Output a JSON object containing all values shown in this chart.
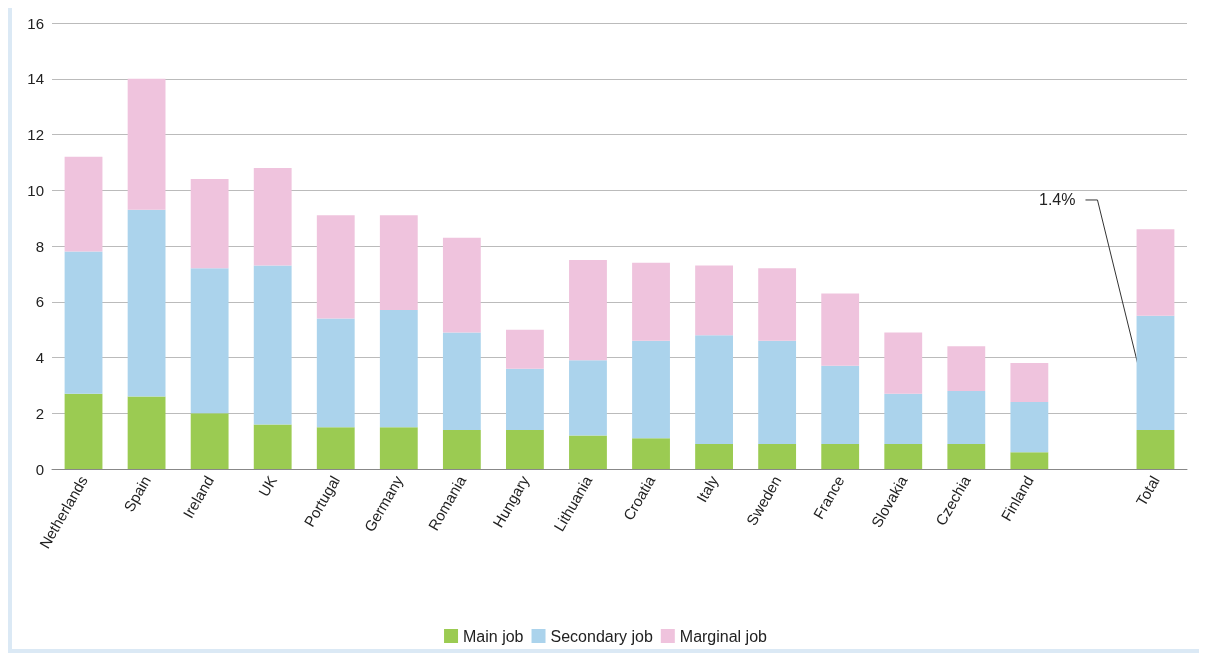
{
  "chart_data": {
    "type": "bar",
    "stacked": true,
    "categories": [
      "Netherlands",
      "Spain",
      "Ireland",
      "UK",
      "Portugal",
      "Germany",
      "Romania",
      "Hungary",
      "Lithuania",
      "Croatia",
      "Italy",
      "Sweden",
      "France",
      "Slovakia",
      "Czechia",
      "Finland",
      null,
      "Total"
    ],
    "series": [
      {
        "name": "Main job",
        "color": "#9bcb52",
        "values": [
          2.7,
          2.6,
          2.0,
          1.6,
          1.5,
          1.5,
          1.4,
          1.4,
          1.2,
          1.1,
          0.9,
          0.9,
          0.9,
          0.9,
          0.9,
          0.6,
          null,
          1.4
        ]
      },
      {
        "name": "Secondary job",
        "color": "#abd3ec",
        "values": [
          5.1,
          6.7,
          5.2,
          5.7,
          3.9,
          4.2,
          3.5,
          2.2,
          2.7,
          3.5,
          3.9,
          3.7,
          2.8,
          1.8,
          1.9,
          1.8,
          null,
          4.1
        ]
      },
      {
        "name": "Marginal job",
        "color": "#efc3dd",
        "values": [
          3.4,
          4.7,
          3.2,
          3.5,
          3.7,
          3.4,
          3.4,
          1.4,
          3.6,
          2.8,
          2.5,
          2.6,
          2.6,
          2.2,
          1.6,
          1.4,
          null,
          3.1
        ]
      }
    ],
    "ylim": [
      0,
      16
    ],
    "yticks": [
      0,
      2,
      4,
      6,
      8,
      10,
      12,
      14,
      16
    ],
    "grid": "y",
    "legend": "bottom",
    "annotations": [
      {
        "text": "1.4%",
        "x": "Total",
        "y": 1.4
      }
    ]
  }
}
